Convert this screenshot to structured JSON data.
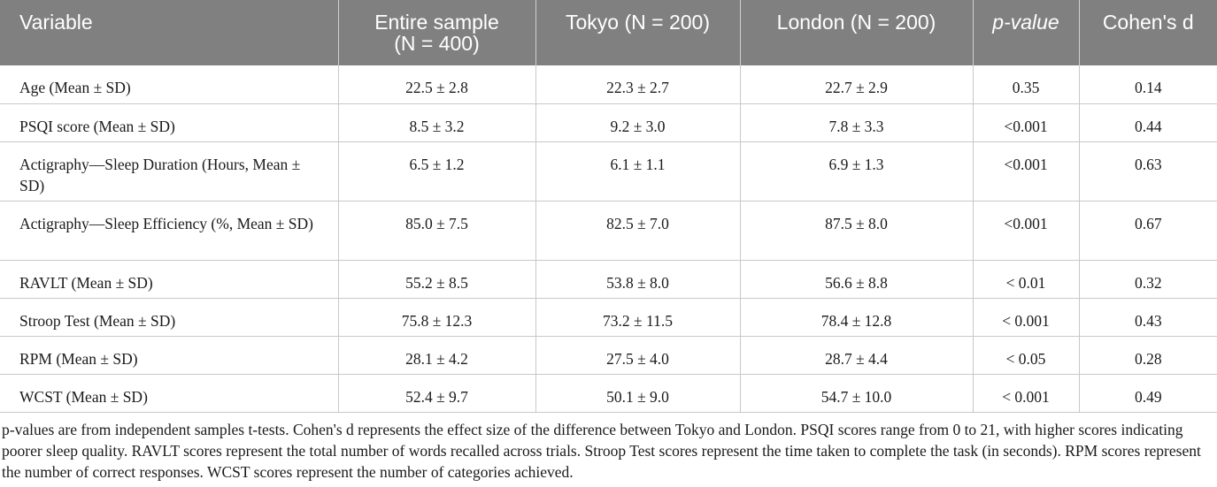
{
  "table": {
    "headers": [
      {
        "text": "Variable"
      },
      {
        "text": "Entire sample\n(N = 400)"
      },
      {
        "text": "Tokyo (N = 200)"
      },
      {
        "text": "London (N = 200)"
      },
      {
        "text": "p-value"
      },
      {
        "text": "Cohen's d"
      }
    ],
    "rows": [
      {
        "cells": [
          "Age (Mean ± SD)",
          "22.5 ± 2.8",
          "22.3 ± 2.7",
          "22.7 ± 2.9",
          "0.35",
          "0.14"
        ]
      },
      {
        "cells": [
          "PSQI score (Mean ± SD)",
          "8.5 ± 3.2",
          "9.2 ± 3.0",
          "7.8 ± 3.3",
          "<0.001",
          "0.44"
        ]
      },
      {
        "cells": [
          "Actigraphy—Sleep Duration (Hours, Mean ± SD)",
          "6.5 ± 1.2",
          "6.1 ± 1.1",
          "6.9 ± 1.3",
          "<0.001",
          "0.63"
        ]
      },
      {
        "cells": [
          "Actigraphy—Sleep Efficiency (%, Mean ± SD)",
          "85.0 ± 7.5",
          "82.5 ± 7.0",
          "87.5 ± 8.0",
          "<0.001",
          "0.67"
        ]
      },
      {
        "cells": [
          "RAVLT (Mean ± SD)",
          "55.2 ± 8.5",
          "53.8 ± 8.0",
          "56.6 ± 8.8",
          "< 0.01",
          "0.32"
        ]
      },
      {
        "cells": [
          "Stroop Test (Mean ± SD)",
          "75.8 ± 12.3",
          "73.2 ± 11.5",
          "78.4 ± 12.8",
          "< 0.001",
          "0.43"
        ]
      },
      {
        "cells": [
          "RPM (Mean ± SD)",
          "28.1 ± 4.2",
          "27.5 ± 4.0",
          "28.7 ± 4.4",
          "< 0.05",
          "0.28"
        ]
      },
      {
        "cells": [
          "WCST (Mean ± SD)",
          "52.4 ± 9.7",
          "50.1 ± 9.0",
          "54.7 ± 10.0",
          "< 0.001",
          "0.49"
        ]
      }
    ]
  },
  "footnote": "p-values are from independent samples t-tests. Cohen's d represents the effect size of the difference between Tokyo and London. PSQI scores range from 0 to 21, with higher scores indicating poorer sleep quality. RAVLT scores represent the total number of words recalled across trials. Stroop Test scores represent the time taken to complete the task (in seconds). RPM scores represent the number of correct responses. WCST scores represent the number of categories achieved.",
  "colors": {
    "header_bg": "#808080",
    "header_text": "#ffffff",
    "body_text": "#1a1a1a",
    "rule": "#c8c8c8"
  }
}
